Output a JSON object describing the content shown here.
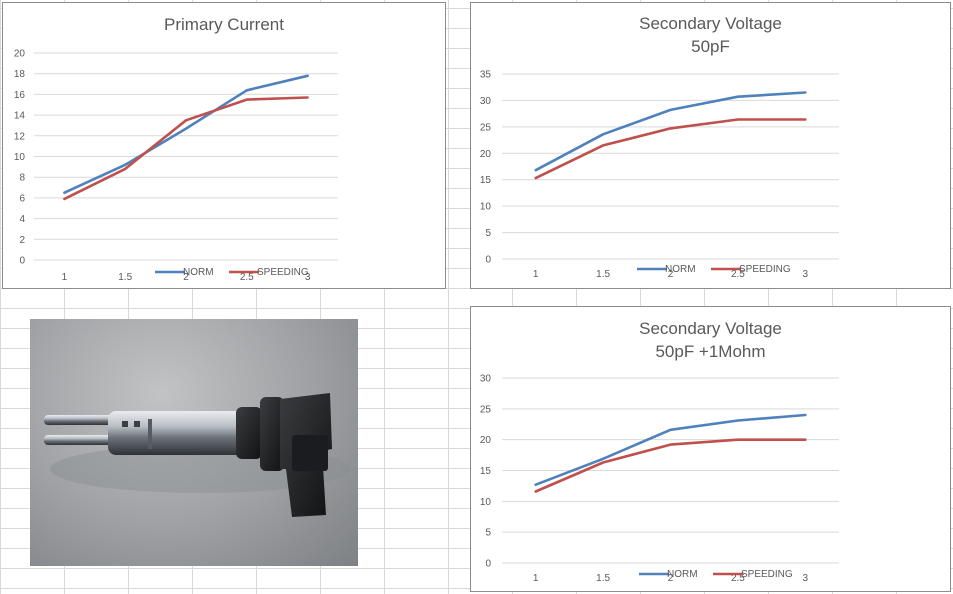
{
  "colors": {
    "norm": "#4f81bd",
    "speeding": "#c0504d",
    "grid": "#d9d9d9"
  },
  "image": {
    "subject": "ignition-coil-photo"
  },
  "chart_data": [
    {
      "id": "primary",
      "type": "line",
      "title": "Primary Current",
      "subtitle": "",
      "categories": [
        "1",
        "1.5",
        "2",
        "2.5",
        "3"
      ],
      "yticks": [
        0,
        2,
        4,
        6,
        8,
        10,
        12,
        14,
        16,
        18,
        20
      ],
      "ylim": [
        0,
        20
      ],
      "grid": true,
      "legend_position": "bottom",
      "series": [
        {
          "name": "NORM",
          "color": "#4f81bd",
          "values": [
            6.5,
            9.2,
            12.7,
            16.4,
            17.8
          ]
        },
        {
          "name": "SPEEDING",
          "color": "#c0504d",
          "values": [
            5.9,
            8.8,
            13.5,
            15.5,
            15.7
          ]
        }
      ]
    },
    {
      "id": "secondary50",
      "type": "line",
      "title": "Secondary Voltage",
      "subtitle": "50pF",
      "categories": [
        "1",
        "1.5",
        "2",
        "2.5",
        "3"
      ],
      "yticks": [
        0,
        5,
        10,
        15,
        20,
        25,
        30,
        35
      ],
      "ylim": [
        0,
        35
      ],
      "grid": true,
      "legend_position": "bottom",
      "series": [
        {
          "name": "NORM",
          "color": "#4f81bd",
          "values": [
            16.8,
            23.6,
            28.2,
            30.7,
            31.5
          ]
        },
        {
          "name": "SPEEDING",
          "color": "#c0504d",
          "values": [
            15.3,
            21.5,
            24.7,
            26.4,
            26.4
          ]
        }
      ]
    },
    {
      "id": "secondary1m",
      "type": "line",
      "title": "Secondary Voltage",
      "subtitle": "50pF +1Mohm",
      "categories": [
        "1",
        "1.5",
        "2",
        "2.5",
        "3"
      ],
      "yticks": [
        0,
        5,
        10,
        15,
        20,
        25,
        30
      ],
      "ylim": [
        0,
        30
      ],
      "grid": true,
      "legend_position": "bottom",
      "series": [
        {
          "name": "NORM",
          "color": "#4f81bd",
          "values": [
            12.7,
            16.9,
            21.6,
            23.1,
            24.0
          ]
        },
        {
          "name": "SPEEDING",
          "color": "#c0504d",
          "values": [
            11.6,
            16.3,
            19.2,
            20.0,
            20.0
          ]
        }
      ]
    }
  ]
}
